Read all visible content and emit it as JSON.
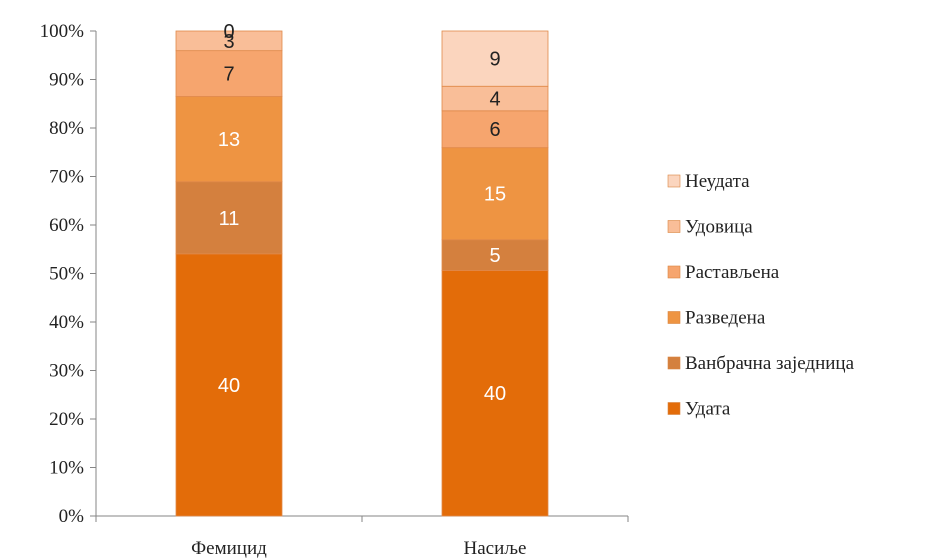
{
  "chart_data": {
    "type": "bar",
    "stacked": true,
    "percent_stacked": true,
    "categories": [
      "Фемицид",
      "Насиље"
    ],
    "ylim": [
      0,
      100
    ],
    "yticks": [
      "0%",
      "10%",
      "20%",
      "30%",
      "40%",
      "50%",
      "60%",
      "70%",
      "80%",
      "90%",
      "100%"
    ],
    "legend_position": "right",
    "grid": false,
    "series": [
      {
        "name": "Удата",
        "values": [
          40,
          40
        ],
        "color": "#E36C09",
        "label_color": "#FFFFFF"
      },
      {
        "name": "Ванбрачна заједница",
        "values": [
          11,
          5
        ],
        "color": "#D4803E",
        "label_color": "#FFFFFF"
      },
      {
        "name": "Разведена",
        "values": [
          13,
          15
        ],
        "color": "#EE9442",
        "label_color": "#FFFFFF"
      },
      {
        "name": "Растављена",
        "values": [
          7,
          6
        ],
        "color": "#F6A56E",
        "label_color": "#222222"
      },
      {
        "name": "Удовица",
        "values": [
          3,
          4
        ],
        "color": "#F9BE98",
        "label_color": "#222222"
      },
      {
        "name": "Неудата",
        "values": [
          0,
          9
        ],
        "color": "#FBD5BE",
        "label_color": "#222222"
      }
    ]
  }
}
